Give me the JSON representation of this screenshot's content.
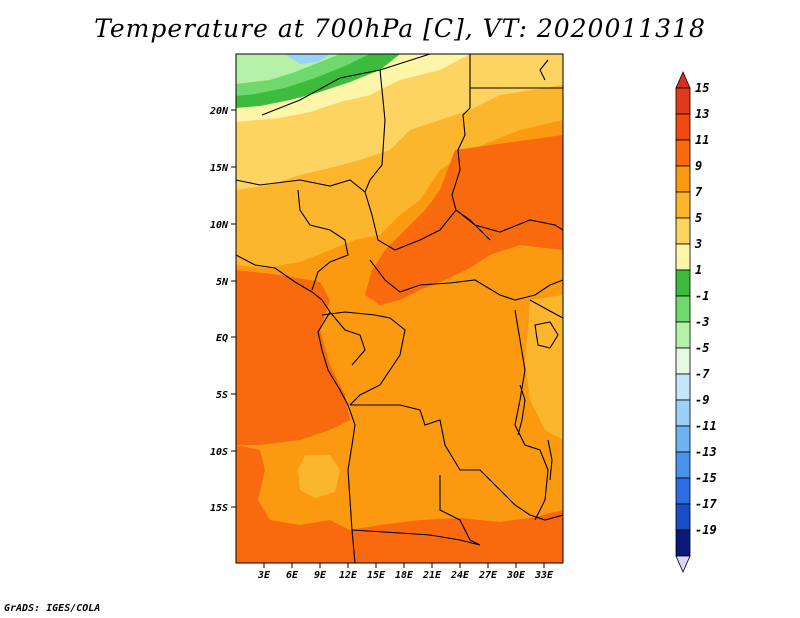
{
  "title": "Temperature at 700hPa [C], VT: 2020011318",
  "footer": "GrADS: IGES/COLA",
  "map": {
    "lon_range": [
      0,
      35
    ],
    "lat_range": [
      -20,
      24
    ],
    "lat_ticks": [
      {
        "label": "20N",
        "value": 20
      },
      {
        "label": "15N",
        "value": 15
      },
      {
        "label": "10N",
        "value": 10
      },
      {
        "label": "5N",
        "value": 5
      },
      {
        "label": "EQ",
        "value": 0
      },
      {
        "label": "5S",
        "value": -5
      },
      {
        "label": "10S",
        "value": -10
      },
      {
        "label": "15S",
        "value": -15
      }
    ],
    "lon_ticks": [
      {
        "label": "3E",
        "value": 3
      },
      {
        "label": "6E",
        "value": 6
      },
      {
        "label": "9E",
        "value": 9
      },
      {
        "label": "12E",
        "value": 12
      },
      {
        "label": "15E",
        "value": 15
      },
      {
        "label": "18E",
        "value": 18
      },
      {
        "label": "21E",
        "value": 21
      },
      {
        "label": "24E",
        "value": 24
      },
      {
        "label": "27E",
        "value": 27
      },
      {
        "label": "30E",
        "value": 30
      },
      {
        "label": "33E",
        "value": 33
      }
    ]
  },
  "colorbar": {
    "levels": [
      {
        "label": "15",
        "color": "#e03a1c"
      },
      {
        "label": "13",
        "color": "#f04a10"
      },
      {
        "label": "11",
        "color": "#f96a0e"
      },
      {
        "label": "9",
        "color": "#fb9a10"
      },
      {
        "label": "7",
        "color": "#fcb62e"
      },
      {
        "label": "5",
        "color": "#fdd462"
      },
      {
        "label": "3",
        "color": "#fdf5a8"
      },
      {
        "label": "1",
        "color": "#3cbb3c"
      },
      {
        "label": "-1",
        "color": "#6fd96f"
      },
      {
        "label": "-3",
        "color": "#b5f2a8"
      },
      {
        "label": "-5",
        "color": "#e4fae0"
      },
      {
        "label": "-7",
        "color": "#c4e6fb"
      },
      {
        "label": "-9",
        "color": "#9bd0f8"
      },
      {
        "label": "-11",
        "color": "#6eb2f2"
      },
      {
        "label": "-13",
        "color": "#4a92ea"
      },
      {
        "label": "-15",
        "color": "#2a6ee2"
      },
      {
        "label": "-17",
        "color": "#1a4ec8"
      },
      {
        "label": "-19",
        "color": "#0e2a9a"
      }
    ],
    "top_cap_color": "#d8301c",
    "bottom_cap_color": "#d8d6f6",
    "bottom_segment_color": "#0b1a78"
  }
}
